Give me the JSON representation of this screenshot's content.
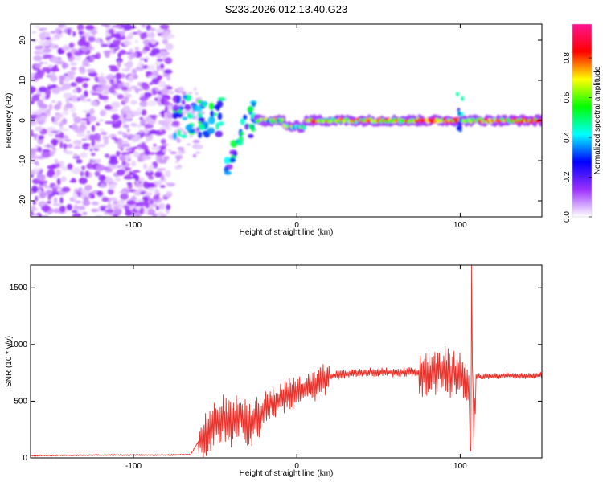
{
  "chart_data": [
    {
      "type": "heatmap",
      "title": "S233.2026.012.13.40.G23",
      "xlabel": "Height of straight line (km)",
      "ylabel": "Frequency (Hz)",
      "xlim": [
        -163,
        150
      ],
      "ylim": [
        -24,
        24
      ],
      "x_ticks": [
        -100,
        0,
        100
      ],
      "x_tick_labels": [
        "-100",
        "0",
        "100"
      ],
      "y_ticks": [
        -20,
        -10,
        0,
        10,
        20
      ],
      "y_tick_labels": [
        "-20",
        "-10",
        "0",
        "10",
        "20"
      ],
      "colorbar": {
        "label": "Normalized spectral amplitude",
        "range": [
          0.0,
          0.97
        ],
        "ticks": [
          0.0,
          0.2,
          0.4,
          0.6,
          0.8
        ],
        "tick_labels": [
          "0.0",
          "0.2",
          "0.4",
          "0.6",
          "0.8"
        ],
        "colors": [
          "#ffffff",
          "#9b30ff",
          "#0000ff",
          "#00ffff",
          "#00ff00",
          "#ffff00",
          "#ff0000",
          "#ff1493"
        ]
      },
      "regions": [
        {
          "name": "noise",
          "x_range": [
            -163,
            -75
          ],
          "y_range": [
            -24,
            24
          ],
          "amplitude": [
            0.05,
            0.2
          ]
        },
        {
          "name": "transition",
          "x_range": [
            -75,
            -25
          ],
          "y_range": [
            -15,
            8
          ],
          "amplitude": [
            0.2,
            0.7
          ]
        },
        {
          "name": "tone",
          "x_range": [
            -25,
            150
          ],
          "y_center": 0,
          "amplitude": [
            0.4,
            0.9
          ]
        }
      ]
    },
    {
      "type": "line",
      "xlabel": "Height of straight line (km)",
      "ylabel": "SNR (10 * v/v)",
      "xlim": [
        -163,
        150
      ],
      "ylim": [
        0,
        1700
      ],
      "x_ticks": [
        -100,
        0,
        100
      ],
      "x_tick_labels": [
        "-100",
        "0",
        "100"
      ],
      "y_ticks": [
        0,
        500,
        1000,
        1500
      ],
      "y_tick_labels": [
        "0",
        "500",
        "1000",
        "1500"
      ],
      "color": "#e8322b",
      "series": [
        {
          "name": "SNR",
          "x": [
            -163,
            -120,
            -80,
            -65,
            -60,
            -50,
            -45,
            -40,
            -35,
            -30,
            -25,
            -20,
            -15,
            -10,
            -5,
            0,
            5,
            10,
            15,
            20,
            30,
            40,
            50,
            60,
            70,
            80,
            85,
            90,
            95,
            100,
            104,
            106,
            107,
            108,
            110,
            120,
            130,
            140,
            150
          ],
          "y": [
            20,
            25,
            25,
            30,
            150,
            300,
            350,
            300,
            380,
            280,
            350,
            420,
            500,
            520,
            550,
            560,
            600,
            640,
            680,
            720,
            740,
            750,
            760,
            750,
            760,
            740,
            760,
            780,
            720,
            760,
            700,
            600,
            1700,
            200,
            720,
            720,
            730,
            720,
            730
          ],
          "noise_envelope": [
            {
              "x_range": [
                -60,
                -20
              ],
              "amplitude": 300
            },
            {
              "x_range": [
                -20,
                20
              ],
              "amplitude": 220
            },
            {
              "x_range": [
                20,
                75
              ],
              "amplitude": 60
            },
            {
              "x_range": [
                75,
                110
              ],
              "amplitude": 320
            },
            {
              "x_range": [
                110,
                150
              ],
              "amplitude": 40
            }
          ]
        }
      ]
    }
  ]
}
